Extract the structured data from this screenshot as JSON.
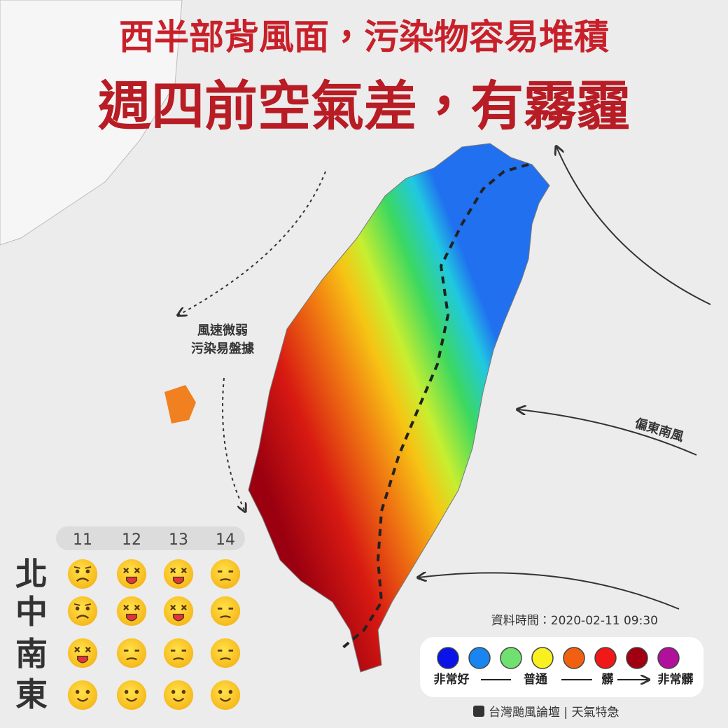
{
  "header": {
    "title_line_1": "西半部背風面，污染物容易堆積",
    "title_line_2": "週四前空氣差，有霧霾"
  },
  "annotations": {
    "west": [
      "風速微弱",
      "污染易盤據"
    ],
    "wind": "偏東南風"
  },
  "forecast": {
    "days": [
      11,
      12,
      13,
      14
    ],
    "regions": [
      "北",
      "中",
      "南",
      "東"
    ]
  },
  "legend": {
    "data_time": "資料時間：2020-02-11 09:30",
    "labels": [
      "非常好",
      "普通",
      "髒",
      "非常髒"
    ]
  },
  "footer": "台灣颱風論壇 | 天氣特急"
}
